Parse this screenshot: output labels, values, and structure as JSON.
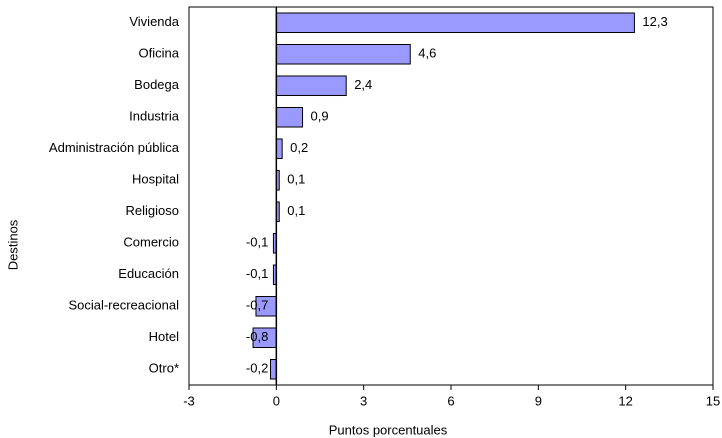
{
  "chart_data": {
    "type": "hbar",
    "x_label": "Puntos porcentuales",
    "y_label": "Destinos",
    "categories": [
      "Vivienda",
      "Oficina",
      "Bodega",
      "Industria",
      "Administración pública",
      "Hospital",
      "Religioso",
      "Comercio",
      "Educación",
      "Social-recreacional",
      "Hotel",
      "Otro*"
    ],
    "values": [
      12.3,
      4.6,
      2.4,
      0.9,
      0.2,
      0.1,
      0.1,
      -0.1,
      -0.1,
      -0.7,
      -0.8,
      -0.2
    ],
    "value_labels": [
      "12,3",
      "4,6",
      "2,4",
      "0,9",
      "0,2",
      "0,1",
      "0,1",
      "-0,1",
      "-0,1",
      "-0,7",
      "-0,8",
      "-0,2"
    ],
    "color": "#9999ff",
    "xlim": [
      -3,
      15
    ],
    "xticks": [
      -3,
      0,
      3,
      6,
      9,
      12,
      15
    ]
  }
}
